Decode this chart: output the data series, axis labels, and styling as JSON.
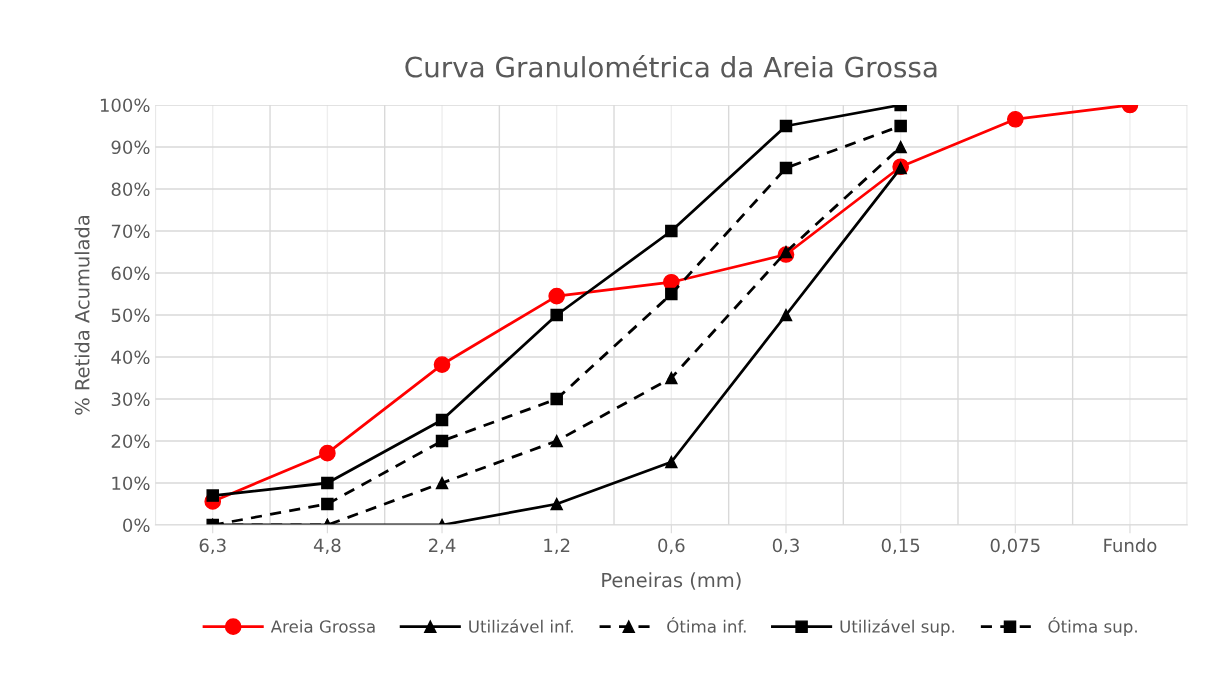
{
  "chart_data": {
    "type": "line",
    "title": "Curva Granulométrica da Areia Grossa",
    "xlabel": "Peneiras (mm)",
    "ylabel": "% Retida Acumulada",
    "categories": [
      "6,3",
      "4,8",
      "2,4",
      "1,2",
      "0,6",
      "0,3",
      "0,15",
      "0,075",
      "Fundo"
    ],
    "series": [
      {
        "name": "Areia Grossa",
        "color": "#ff0000",
        "marker": "circle",
        "line_style": "solid",
        "values": [
          5.6,
          17.1,
          38.2,
          54.5,
          57.8,
          64.4,
          85.3,
          96.6,
          100
        ]
      },
      {
        "name": "Utilizável inf.",
        "color": "#000000",
        "marker": "triangle",
        "line_style": "solid",
        "values": [
          0,
          0,
          0,
          5,
          15,
          50,
          85,
          null,
          null
        ]
      },
      {
        "name": "Ótima inf.",
        "color": "#000000",
        "marker": "triangle",
        "line_style": "dashed",
        "values": [
          0,
          0,
          10,
          20,
          35,
          65,
          90,
          null,
          null
        ]
      },
      {
        "name": "Utilizável sup.",
        "color": "#000000",
        "marker": "square",
        "line_style": "solid",
        "values": [
          7,
          10,
          25,
          50,
          70,
          95,
          100,
          null,
          null
        ]
      },
      {
        "name": "Ótima sup.",
        "color": "#000000",
        "marker": "square",
        "line_style": "dashed",
        "values": [
          0,
          5,
          20,
          30,
          55,
          85,
          95,
          null,
          null
        ]
      }
    ],
    "ylim": [
      0,
      100
    ],
    "yticks": [
      {
        "value": 0,
        "label": "0%"
      },
      {
        "value": 10,
        "label": "10%"
      },
      {
        "value": 20,
        "label": "20%"
      },
      {
        "value": 30,
        "label": "30%"
      },
      {
        "value": 40,
        "label": "40%"
      },
      {
        "value": 50,
        "label": "50%"
      },
      {
        "value": 60,
        "label": "60%"
      },
      {
        "value": 70,
        "label": "70%"
      },
      {
        "value": 80,
        "label": "80%"
      },
      {
        "value": 90,
        "label": "90%"
      },
      {
        "value": 100,
        "label": "100%"
      }
    ],
    "grid": true,
    "legend": "bottom"
  }
}
